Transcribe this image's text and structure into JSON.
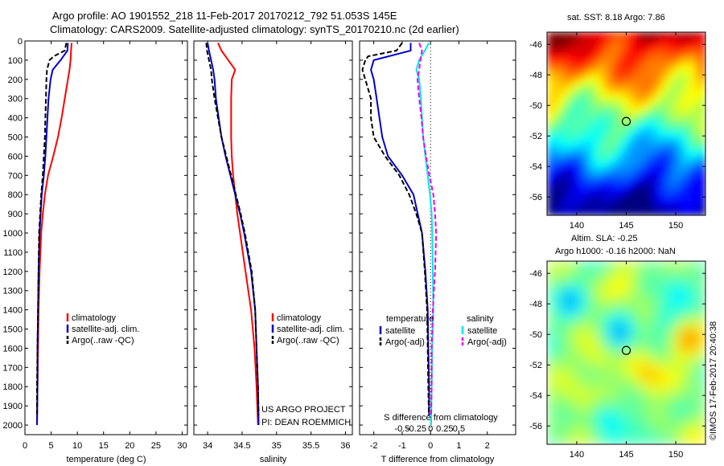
{
  "header": {
    "title_line1": "Argo profile: AO 1901552_218 11-Feb-2017 20170212_792 51.053S 145E",
    "title_line2": "Climatology: CARS2009. Satellite-adjusted climatology: synTS_20170210.nc (2d earlier)"
  },
  "credits": {
    "project": "US ARGO PROJECT",
    "pi": "PI: DEAN ROEMMICH",
    "imos": "©IMOS 17-Feb-2017 20:40:38"
  },
  "colors": {
    "climatology": "#ff0000",
    "satellite": "#0000cc",
    "argo": "#000000",
    "salinity_satellite": "#00e5ee",
    "salinity_argo": "#ee00ee"
  },
  "chart_data": [
    {
      "id": "temperature",
      "type": "line",
      "xlabel": "temperature (deg C)",
      "ylabel": "",
      "xlim": [
        0,
        31
      ],
      "ylim": [
        2050,
        0
      ],
      "xticks": [
        0,
        5,
        10,
        15,
        20,
        25,
        30
      ],
      "yticks": [
        0,
        100,
        200,
        300,
        400,
        500,
        600,
        700,
        800,
        900,
        1000,
        1100,
        1200,
        1300,
        1400,
        1500,
        1600,
        1700,
        1800,
        1900,
        2000
      ],
      "legend": [
        "climatology",
        "satellite-adj. clim.",
        "Argo(..raw -QC)"
      ],
      "series": [
        {
          "name": "climatology",
          "color": "#ff0000",
          "dash": "",
          "depth": [
            10,
            50,
            100,
            150,
            200,
            300,
            400,
            500,
            600,
            700,
            800,
            900,
            1000,
            1200,
            1400,
            1600,
            1800,
            2000
          ],
          "values": [
            8.9,
            8.8,
            8.7,
            8.5,
            8.2,
            7.6,
            7.0,
            6.3,
            5.4,
            4.4,
            3.8,
            3.4,
            3.1,
            2.8,
            2.6,
            2.5,
            2.4,
            2.3
          ]
        },
        {
          "name": "satellite-adj. clim.",
          "color": "#0000cc",
          "dash": "",
          "depth": [
            10,
            50,
            100,
            150,
            200,
            300,
            400,
            500,
            600,
            700,
            800,
            900,
            1000,
            1200,
            1400,
            1600,
            1800,
            2000
          ],
          "values": [
            8.2,
            8.1,
            6.8,
            5.3,
            4.9,
            4.5,
            4.3,
            4.1,
            3.9,
            3.6,
            3.2,
            3.0,
            2.8,
            2.6,
            2.5,
            2.4,
            2.4,
            2.3
          ]
        },
        {
          "name": "Argo(..raw -QC)",
          "color": "#000000",
          "dash": "6,3",
          "depth": [
            10,
            50,
            80,
            100,
            150,
            200,
            300,
            400,
            500,
            600,
            700,
            800,
            900,
            1000,
            1200,
            1400,
            1600,
            1800,
            1950
          ],
          "values": [
            7.9,
            7.6,
            5.5,
            4.7,
            4.2,
            4.1,
            4.0,
            3.9,
            3.8,
            3.6,
            3.4,
            3.1,
            2.9,
            2.7,
            2.6,
            2.5,
            2.4,
            2.3,
            2.3
          ]
        }
      ]
    },
    {
      "id": "salinity",
      "type": "line",
      "xlabel": "salinity",
      "ylabel": "",
      "xlim": [
        33.8,
        36.1
      ],
      "ylim": [
        2050,
        0
      ],
      "xticks": [
        34,
        34.5,
        35,
        35.5,
        36
      ],
      "legend": [
        "climatology",
        "satellite-adj. clim.",
        "Argo(..raw -QC)"
      ],
      "series": [
        {
          "name": "climatology",
          "color": "#ff0000",
          "dash": "",
          "depth": [
            10,
            50,
            100,
            150,
            200,
            300,
            400,
            500,
            600,
            700,
            800,
            900,
            1000,
            1200,
            1400,
            1600,
            1800,
            2000
          ],
          "values": [
            34.15,
            34.2,
            34.3,
            34.4,
            34.35,
            34.34,
            34.34,
            34.34,
            34.35,
            34.37,
            34.4,
            34.43,
            34.47,
            34.55,
            34.63,
            34.68,
            34.71,
            34.73
          ]
        },
        {
          "name": "satellite-adj. clim.",
          "color": "#0000cc",
          "dash": "",
          "depth": [
            10,
            50,
            100,
            150,
            200,
            300,
            400,
            500,
            600,
            700,
            800,
            900,
            1000,
            1200,
            1400,
            1600,
            1800,
            2000
          ],
          "values": [
            34.0,
            34.02,
            34.05,
            34.08,
            34.1,
            34.12,
            34.16,
            34.2,
            34.26,
            34.33,
            34.4,
            34.47,
            34.53,
            34.63,
            34.69,
            34.71,
            34.73,
            34.74
          ]
        },
        {
          "name": "Argo(..raw -QC)",
          "color": "#000000",
          "dash": "6,3",
          "depth": [
            10,
            50,
            100,
            150,
            200,
            300,
            400,
            500,
            600,
            700,
            800,
            900,
            1000,
            1200,
            1400,
            1600,
            1800,
            1950
          ],
          "values": [
            33.98,
            33.99,
            34.02,
            34.05,
            34.06,
            34.1,
            34.15,
            34.2,
            34.27,
            34.34,
            34.41,
            34.48,
            34.54,
            34.64,
            34.69,
            34.71,
            34.73,
            34.74
          ]
        }
      ]
    },
    {
      "id": "difference",
      "type": "line",
      "xlabel": "T difference from climatology",
      "top_label": "S difference from climatology",
      "xlim": [
        -2.5,
        3.0
      ],
      "s_ticks": [
        -0.5,
        -0.25,
        0,
        0.25,
        0.5
      ],
      "s_tick_labels": [
        "-0.5",
        "-0.25",
        "0",
        "0.25",
        "0.5"
      ],
      "xticks": [
        -2,
        -1,
        0,
        1,
        2
      ],
      "ylim": [
        2050,
        0
      ],
      "legend_temperature_title": "temperature",
      "legend_salinity_title": "salinity",
      "legend": [
        "satellite",
        "Argo(-adj)",
        "satellite",
        "Argo(-adj)"
      ],
      "series": [
        {
          "name": "satellite",
          "group": "temperature",
          "color": "#0000cc",
          "dash": "",
          "depth": [
            10,
            50,
            100,
            150,
            200,
            300,
            400,
            500,
            600,
            700,
            800,
            900,
            1000,
            1200,
            1400,
            1600,
            1800,
            1950
          ],
          "values": [
            -0.7,
            -0.7,
            -2.0,
            -2.1,
            -2.0,
            -1.9,
            -1.8,
            -1.7,
            -1.5,
            -1.0,
            -0.6,
            -0.45,
            -0.3,
            -0.18,
            -0.1,
            -0.08,
            -0.05,
            -0.05
          ]
        },
        {
          "name": "Argo(-adj)",
          "group": "temperature",
          "color": "#000000",
          "dash": "6,3",
          "depth": [
            10,
            50,
            80,
            100,
            150,
            200,
            300,
            400,
            500,
            600,
            700,
            800,
            900,
            1000,
            1200,
            1400,
            1600,
            1800,
            1950
          ],
          "values": [
            -1.0,
            -1.2,
            -2.2,
            -2.3,
            -2.4,
            -2.3,
            -2.1,
            -2.1,
            -2.0,
            -1.6,
            -1.1,
            -0.75,
            -0.5,
            -0.3,
            -0.2,
            -0.12,
            -0.1,
            -0.08,
            -0.06
          ]
        },
        {
          "name": "satellite",
          "group": "salinity",
          "color": "#00e5ee",
          "dash": "",
          "depth": [
            10,
            50,
            100,
            150,
            200,
            300,
            400,
            500,
            600,
            700,
            800,
            900,
            1000,
            1200,
            1400,
            1600,
            1800,
            2000
          ],
          "values": [
            -0.03,
            -0.1,
            -0.2,
            -0.25,
            -0.2,
            -0.17,
            -0.15,
            -0.13,
            -0.09,
            -0.05,
            -0.01,
            0.02,
            0.03,
            0.04,
            0.05,
            0.03,
            0.02,
            0.01
          ]
        },
        {
          "name": "Argo(-adj)",
          "group": "salinity",
          "color": "#ee00ee",
          "dash": "6,3",
          "depth": [
            10,
            50,
            100,
            150,
            200,
            300,
            400,
            500,
            600,
            700,
            800,
            900,
            1000,
            1200,
            1400,
            1600,
            1800,
            1950
          ],
          "values": [
            -0.2,
            -0.15,
            -0.18,
            -0.2,
            -0.23,
            -0.2,
            -0.16,
            -0.13,
            -0.08,
            -0.02,
            0.05,
            0.08,
            0.1,
            0.08,
            0.04,
            0.02,
            0.02,
            0.01
          ]
        }
      ]
    },
    {
      "id": "sst-map",
      "type": "heatmap",
      "title": "sat. SST: 8.18  Argo: 7.86",
      "xlim": [
        137,
        153
      ],
      "ylim": [
        -57.2,
        -45.2
      ],
      "xticks": [
        140,
        145,
        150
      ],
      "yticks": [
        -46,
        -48,
        -50,
        -52,
        -54,
        -56
      ],
      "marker": {
        "lon": 145,
        "lat": -51.05
      }
    },
    {
      "id": "sla-map",
      "type": "heatmap",
      "title_line1": "Altim. SLA: -0.25",
      "title_line2": "Argo h1000: -0.16  h2000: NaN",
      "xlim": [
        137,
        153
      ],
      "ylim": [
        -57.2,
        -45.2
      ],
      "xticks": [
        140,
        145,
        150
      ],
      "yticks": [
        -46,
        -48,
        -50,
        -52,
        -54,
        -56
      ],
      "marker": {
        "lon": 145,
        "lat": -51.05
      }
    }
  ]
}
